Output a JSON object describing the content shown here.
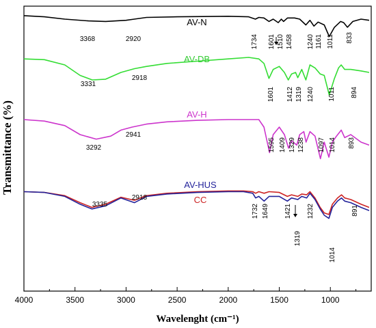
{
  "chart_data": {
    "type": "line",
    "xlabel": "Wavelenght (cm⁻¹)",
    "ylabel": "Transmittance (%)",
    "xlim": [
      4000,
      600
    ],
    "x_ticks": [
      "4000",
      "3500",
      "3000",
      "2500",
      "2000",
      "1500",
      "1000"
    ],
    "x_tick_values": [
      4000,
      3500,
      3000,
      2500,
      2000,
      1500,
      1000
    ],
    "grid": false,
    "series": [
      {
        "name": "AV-N",
        "color": "#000000",
        "points": [
          [
            4000,
            0.46
          ],
          [
            3800,
            0.44
          ],
          [
            3600,
            0.4
          ],
          [
            3368,
            0.37
          ],
          [
            3200,
            0.36
          ],
          [
            3000,
            0.38
          ],
          [
            2920,
            0.4
          ],
          [
            2800,
            0.43
          ],
          [
            2500,
            0.44
          ],
          [
            2000,
            0.45
          ],
          [
            1800,
            0.44
          ],
          [
            1734,
            0.4
          ],
          [
            1700,
            0.43
          ],
          [
            1650,
            0.42
          ],
          [
            1601,
            0.36
          ],
          [
            1560,
            0.4
          ],
          [
            1510,
            0.34
          ],
          [
            1480,
            0.4
          ],
          [
            1458,
            0.36
          ],
          [
            1420,
            0.42
          ],
          [
            1350,
            0.42
          ],
          [
            1300,
            0.4
          ],
          [
            1240,
            0.3
          ],
          [
            1200,
            0.38
          ],
          [
            1161,
            0.28
          ],
          [
            1120,
            0.35
          ],
          [
            1060,
            0.3
          ],
          [
            1011,
            0.1
          ],
          [
            960,
            0.26
          ],
          [
            900,
            0.36
          ],
          [
            870,
            0.34
          ],
          [
            833,
            0.26
          ],
          [
            780,
            0.36
          ],
          [
            700,
            0.4
          ],
          [
            620,
            0.38
          ]
        ]
      },
      {
        "name": "AV-DB",
        "color": "#33dd33",
        "points": [
          [
            4000,
            0.58
          ],
          [
            3800,
            0.57
          ],
          [
            3600,
            0.5
          ],
          [
            3450,
            0.36
          ],
          [
            3331,
            0.3
          ],
          [
            3200,
            0.31
          ],
          [
            3050,
            0.4
          ],
          [
            2918,
            0.45
          ],
          [
            2800,
            0.48
          ],
          [
            2600,
            0.52
          ],
          [
            2300,
            0.55
          ],
          [
            2000,
            0.58
          ],
          [
            1800,
            0.6
          ],
          [
            1700,
            0.58
          ],
          [
            1650,
            0.52
          ],
          [
            1601,
            0.32
          ],
          [
            1560,
            0.44
          ],
          [
            1500,
            0.48
          ],
          [
            1450,
            0.4
          ],
          [
            1412,
            0.3
          ],
          [
            1380,
            0.38
          ],
          [
            1340,
            0.4
          ],
          [
            1319,
            0.33
          ],
          [
            1280,
            0.44
          ],
          [
            1240,
            0.3
          ],
          [
            1200,
            0.5
          ],
          [
            1150,
            0.46
          ],
          [
            1100,
            0.38
          ],
          [
            1060,
            0.36
          ],
          [
            1011,
            0.1
          ],
          [
            960,
            0.32
          ],
          [
            920,
            0.46
          ],
          [
            894,
            0.5
          ],
          [
            860,
            0.44
          ],
          [
            800,
            0.44
          ],
          [
            700,
            0.42
          ],
          [
            620,
            0.4
          ]
        ]
      },
      {
        "name": "AV-H",
        "color": "#cc33cc",
        "points": [
          [
            4000,
            0.5
          ],
          [
            3800,
            0.48
          ],
          [
            3600,
            0.42
          ],
          [
            3450,
            0.3
          ],
          [
            3292,
            0.24
          ],
          [
            3150,
            0.28
          ],
          [
            3050,
            0.36
          ],
          [
            2941,
            0.4
          ],
          [
            2800,
            0.44
          ],
          [
            2600,
            0.47
          ],
          [
            2300,
            0.49
          ],
          [
            2000,
            0.5
          ],
          [
            1800,
            0.5
          ],
          [
            1700,
            0.5
          ],
          [
            1650,
            0.4
          ],
          [
            1595,
            0.06
          ],
          [
            1560,
            0.3
          ],
          [
            1500,
            0.4
          ],
          [
            1450,
            0.3
          ],
          [
            1409,
            0.12
          ],
          [
            1380,
            0.22
          ],
          [
            1329,
            0.16
          ],
          [
            1300,
            0.3
          ],
          [
            1260,
            0.34
          ],
          [
            1238,
            0.2
          ],
          [
            1200,
            0.34
          ],
          [
            1150,
            0.28
          ],
          [
            1097,
            -0.02
          ],
          [
            1060,
            0.2
          ],
          [
            1014,
            0.0
          ],
          [
            980,
            0.2
          ],
          [
            940,
            0.28
          ],
          [
            893,
            0.36
          ],
          [
            860,
            0.26
          ],
          [
            800,
            0.3
          ],
          [
            700,
            0.2
          ],
          [
            620,
            0.16
          ]
        ]
      },
      {
        "name": "AV-HUS",
        "color": "#22229a",
        "points": [
          [
            4000,
            0.3
          ],
          [
            3800,
            0.29
          ],
          [
            3600,
            0.24
          ],
          [
            3450,
            0.14
          ],
          [
            3335,
            0.08
          ],
          [
            3200,
            0.12
          ],
          [
            3050,
            0.22
          ],
          [
            2918,
            0.16
          ],
          [
            2800,
            0.24
          ],
          [
            2600,
            0.27
          ],
          [
            2300,
            0.29
          ],
          [
            2000,
            0.3
          ],
          [
            1850,
            0.3
          ],
          [
            1760,
            0.28
          ],
          [
            1732,
            0.22
          ],
          [
            1700,
            0.24
          ],
          [
            1649,
            0.18
          ],
          [
            1600,
            0.24
          ],
          [
            1500,
            0.24
          ],
          [
            1421,
            0.18
          ],
          [
            1380,
            0.22
          ],
          [
            1319,
            0.2
          ],
          [
            1280,
            0.24
          ],
          [
            1232,
            0.22
          ],
          [
            1200,
            0.28
          ],
          [
            1150,
            0.2
          ],
          [
            1100,
            0.08
          ],
          [
            1060,
            0.0
          ],
          [
            1014,
            -0.04
          ],
          [
            980,
            0.1
          ],
          [
            930,
            0.18
          ],
          [
            891,
            0.22
          ],
          [
            860,
            0.18
          ],
          [
            800,
            0.16
          ],
          [
            700,
            0.1
          ],
          [
            620,
            0.06
          ]
        ]
      },
      {
        "name": "CC",
        "color": "#cc2222",
        "points": [
          [
            4000,
            0.3
          ],
          [
            3800,
            0.29
          ],
          [
            3600,
            0.25
          ],
          [
            3450,
            0.16
          ],
          [
            3335,
            0.1
          ],
          [
            3200,
            0.14
          ],
          [
            3050,
            0.23
          ],
          [
            2918,
            0.19
          ],
          [
            2800,
            0.25
          ],
          [
            2600,
            0.28
          ],
          [
            2300,
            0.3
          ],
          [
            2000,
            0.31
          ],
          [
            1850,
            0.31
          ],
          [
            1760,
            0.3
          ],
          [
            1732,
            0.28
          ],
          [
            1700,
            0.3
          ],
          [
            1649,
            0.28
          ],
          [
            1600,
            0.3
          ],
          [
            1500,
            0.29
          ],
          [
            1421,
            0.24
          ],
          [
            1380,
            0.26
          ],
          [
            1319,
            0.24
          ],
          [
            1280,
            0.27
          ],
          [
            1232,
            0.26
          ],
          [
            1200,
            0.3
          ],
          [
            1150,
            0.22
          ],
          [
            1100,
            0.1
          ],
          [
            1060,
            0.03
          ],
          [
            1014,
            0.01
          ],
          [
            980,
            0.14
          ],
          [
            930,
            0.22
          ],
          [
            891,
            0.26
          ],
          [
            860,
            0.22
          ],
          [
            800,
            0.2
          ],
          [
            700,
            0.14
          ],
          [
            620,
            0.1
          ]
        ]
      }
    ],
    "series_labels": [
      {
        "text": "AV-N",
        "color": "#000000"
      },
      {
        "text": "AV-DB",
        "color": "#33cc33"
      },
      {
        "text": "AV-H",
        "color": "#cc33cc"
      },
      {
        "text": "AV-HUS",
        "color": "#22229a"
      },
      {
        "text": "CC",
        "color": "#cc2222"
      }
    ],
    "annotations": [
      {
        "series": "AV-N",
        "labels": [
          "3368",
          "2920",
          "1734",
          "1601",
          "1510",
          "1458",
          "1240",
          "1161",
          "1011",
          "833"
        ]
      },
      {
        "series": "AV-DB",
        "labels": [
          "3331",
          "2918",
          "1601",
          "1412",
          "1319",
          "1240",
          "1011",
          "894"
        ]
      },
      {
        "series": "AV-H",
        "labels": [
          "3292",
          "2941",
          "1595",
          "1409",
          "1329",
          "1238",
          "1097",
          "1014",
          "893"
        ]
      },
      {
        "series": "AV-HUS",
        "labels": [
          "3335",
          "2918",
          "1732",
          "1649",
          "1421",
          "1319",
          "1232",
          "1014",
          "891"
        ]
      }
    ]
  }
}
